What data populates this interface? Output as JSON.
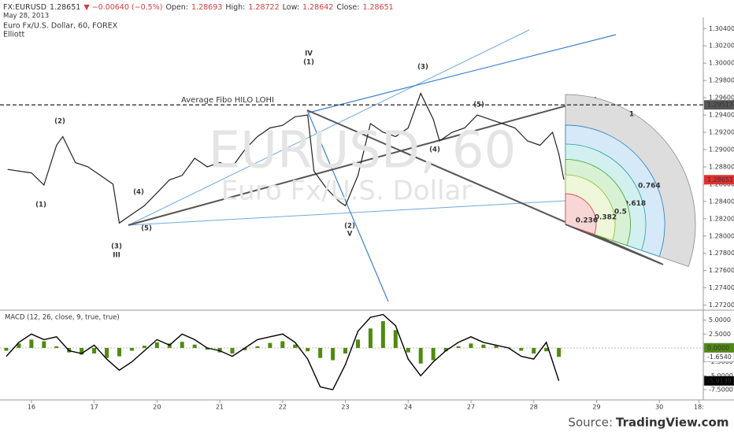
{
  "header": {
    "symbol_line": [
      {
        "text": "FX:EURUSD",
        "color": "#333333"
      },
      {
        "text": "1.28651",
        "color": "#333333"
      },
      {
        "text": "▼ −0.00640 (−0.5%)",
        "color": "#d33c3c"
      },
      {
        "text": "Open:",
        "color": "#333333"
      },
      {
        "text": "1.28693",
        "color": "#d33c3c"
      },
      {
        "text": "High:",
        "color": "#333333"
      },
      {
        "text": "1.28722",
        "color": "#d33c3c"
      },
      {
        "text": "Low:",
        "color": "#333333"
      },
      {
        "text": "1.28642",
        "color": "#d33c3c"
      },
      {
        "text": "Close:",
        "color": "#333333"
      },
      {
        "text": "1.28651",
        "color": "#d33c3c"
      }
    ],
    "date": "May 28, 2013",
    "instrument": "Euro Fx/U.S. Dollar, 60, FOREX",
    "study": "Elliott",
    "watermark": "EURUSD, 60",
    "watermark_subtitle": "Euro Fx/U.S. Dollar"
  },
  "source": {
    "prefix": "Source:",
    "site": "TradingView.com"
  },
  "chart_data": [
    {
      "type": "line",
      "color": "#222222",
      "x": [
        -0.38,
        0,
        0.2,
        0.4,
        0.5,
        0.7,
        0.9,
        1.1,
        1.3,
        1.4,
        1.6,
        1.8,
        2.0,
        2.2,
        2.4,
        2.6,
        2.8,
        3.0,
        3.2,
        3.4,
        3.6,
        3.8,
        4.0,
        4.2,
        4.4,
        4.5,
        4.7,
        4.9,
        5.0,
        5.2,
        5.4,
        5.6,
        5.8,
        6.0,
        6.2,
        6.4,
        6.5,
        6.7,
        6.9,
        7.1,
        7.3,
        7.5,
        7.7,
        7.9,
        8.1,
        8.3,
        8.4,
        8.48
      ],
      "values": [
        1.2877,
        1.2873,
        1.2859,
        1.2905,
        1.2915,
        1.2885,
        1.288,
        1.287,
        1.286,
        1.2815,
        1.2825,
        1.2835,
        1.285,
        1.2865,
        1.287,
        1.289,
        1.288,
        1.2885,
        1.288,
        1.29,
        1.2915,
        1.2925,
        1.2928,
        1.2938,
        1.294,
        1.2875,
        1.2855,
        1.284,
        1.2835,
        1.287,
        1.293,
        1.292,
        1.2915,
        1.2925,
        1.2965,
        1.2935,
        1.291,
        1.292,
        1.2925,
        1.294,
        1.2935,
        1.293,
        1.2925,
        1.291,
        1.2905,
        1.292,
        1.2895,
        1.28651
      ],
      "xlim": [
        -0.5,
        10.7
      ],
      "xticks": [
        {
          "value": 0,
          "label": "16"
        },
        {
          "value": 1,
          "label": "17"
        },
        {
          "value": 2,
          "label": "20"
        },
        {
          "value": 3,
          "label": "21"
        },
        {
          "value": 4,
          "label": "22"
        },
        {
          "value": 5,
          "label": "23"
        },
        {
          "value": 6,
          "label": "24"
        },
        {
          "value": 7,
          "label": "27"
        },
        {
          "value": 8,
          "label": "28"
        },
        {
          "value": 9,
          "label": "29"
        },
        {
          "value": 10,
          "label": "30"
        },
        {
          "value": 10.63,
          "label": "18:"
        }
      ],
      "ylim": [
        1.2716,
        1.3053
      ],
      "yticks": [
        {
          "value": 1.304,
          "label": "1.30400"
        },
        {
          "value": 1.302,
          "label": "1.30200"
        },
        {
          "value": 1.3,
          "label": "1.30000"
        },
        {
          "value": 1.298,
          "label": "1.29800"
        },
        {
          "value": 1.296,
          "label": "1.29600"
        },
        {
          "value": 1.294,
          "label": "1.29400"
        },
        {
          "value": 1.292,
          "label": "1.29200"
        },
        {
          "value": 1.29,
          "label": "1.29000"
        },
        {
          "value": 1.288,
          "label": "1.28800"
        },
        {
          "value": 1.286,
          "label": "1.28600"
        },
        {
          "value": 1.284,
          "label": "1.28400"
        },
        {
          "value": 1.282,
          "label": "1.28200"
        },
        {
          "value": 1.28,
          "label": "1.28000"
        },
        {
          "value": 1.278,
          "label": "1.27800"
        },
        {
          "value": 1.276,
          "label": "1.27600"
        },
        {
          "value": 1.274,
          "label": "1.27400"
        },
        {
          "value": 1.272,
          "label": "1.27200"
        }
      ],
      "hline": {
        "value": 1.29517,
        "label": "Average Fibo HILO LOHI"
      },
      "last_price": 1.28651,
      "fib_levels": [
        {
          "value": 1,
          "color": "#dddddd"
        },
        {
          "value": 0.764,
          "color": "#d6e9f8"
        },
        {
          "value": 0.618,
          "color": "#d3f0f0"
        },
        {
          "value": 0.5,
          "color": "#d8f1d4"
        },
        {
          "value": 0.382,
          "color": "#eef7d9"
        },
        {
          "value": 0.236,
          "color": "#f8d6d6"
        }
      ],
      "fib_label_colors": [
        "#888888",
        "#1e7fc0",
        "#23a0a0",
        "#3f9f28",
        "#8dbb2a",
        "#d33c3c"
      ],
      "annotations": [
        {
          "text": "(1)",
          "color": "#2a8fd8"
        },
        {
          "text": "(2)",
          "color": "#2a8fd8"
        },
        {
          "text": "(3)",
          "color": "#2a8fd8"
        },
        {
          "text": "III",
          "color": "#2e7d1b"
        },
        {
          "text": "(4)",
          "color": "#2a8fd8"
        },
        {
          "text": "(5)",
          "color": "#2a8fd8"
        },
        {
          "text": "IV",
          "color": "#2e7d1b"
        },
        {
          "text": "(1)",
          "color": "#2a8fd8"
        },
        {
          "text": "(2)",
          "color": "#2a8fd8"
        },
        {
          "text": "V",
          "color": "#2e7d1b"
        },
        {
          "text": "(3)",
          "color": "#2a8fd8"
        },
        {
          "text": "(4)",
          "color": "#2a8fd8"
        },
        {
          "text": "(5)",
          "color": "#2a8fd8"
        }
      ]
    },
    {
      "type": "bar",
      "title": "MACD (12, 26, close, 9, true, true)",
      "color": "#4f8a10",
      "line_color": "#000000",
      "x": [
        -0.4,
        -0.2,
        0,
        0.2,
        0.4,
        0.6,
        0.8,
        1.0,
        1.2,
        1.4,
        1.6,
        1.8,
        2.0,
        2.2,
        2.4,
        2.6,
        2.8,
        3.0,
        3.2,
        3.4,
        3.6,
        3.8,
        4.0,
        4.2,
        4.4,
        4.6,
        4.8,
        5.0,
        5.2,
        5.4,
        5.6,
        5.8,
        6.0,
        6.2,
        6.4,
        6.6,
        6.8,
        7.0,
        7.2,
        7.4,
        7.6,
        7.8,
        8.0,
        8.2,
        8.4
      ],
      "values": [
        -0.5,
        0.8,
        1.5,
        1.2,
        0.3,
        -0.8,
        -1.2,
        -1.0,
        -1.8,
        -1.5,
        -0.5,
        0.4,
        1.0,
        0.8,
        1.1,
        0.6,
        -0.3,
        -0.8,
        -1.0,
        -0.4,
        0.3,
        0.9,
        1.2,
        0.6,
        -0.6,
        -1.8,
        -2.2,
        -1.0,
        1.5,
        3.5,
        4.8,
        3.2,
        -0.8,
        -2.8,
        -2.2,
        -0.6,
        0.3,
        0.8,
        0.6,
        0.4,
        0.1,
        -0.5,
        -1.0,
        -0.6,
        -1.6
      ],
      "line_values": [
        -1.5,
        1.0,
        2.5,
        1.5,
        2.0,
        -0.5,
        -1.0,
        0.5,
        -2.0,
        -4.0,
        -2.5,
        -0.5,
        1.5,
        0.5,
        2.5,
        1.5,
        0.0,
        -0.5,
        -1.5,
        0.0,
        1.5,
        2.0,
        2.5,
        1.0,
        -2.0,
        -7.0,
        -7.5,
        -3.0,
        3.0,
        5.5,
        6.0,
        4.0,
        -2.0,
        -5.0,
        -2.5,
        -0.5,
        1.0,
        2.0,
        1.0,
        0.5,
        0.0,
        -1.5,
        -2.0,
        1.0,
        -5.9
      ],
      "ylim": [
        -9.2,
        6.5
      ],
      "yticks": [
        {
          "value": 5,
          "label": "5.0000"
        },
        {
          "value": 2.5,
          "label": "2.5000"
        },
        {
          "value": 0,
          "label": "0.0000"
        },
        {
          "value": -2.5,
          "label": "-2.5000"
        },
        {
          "value": -5,
          "label": "-5.0000"
        },
        {
          "value": -7.5,
          "label": "-7.5000"
        }
      ],
      "last_values": [
        {
          "value": 0,
          "label": "0.0000",
          "color": "#4f8a10"
        },
        {
          "value": -1.654,
          "label": "-1.6540",
          "color": "#ffffff"
        },
        {
          "value": -5.9139,
          "label": "-5.9139",
          "color": "#000000"
        }
      ]
    }
  ]
}
